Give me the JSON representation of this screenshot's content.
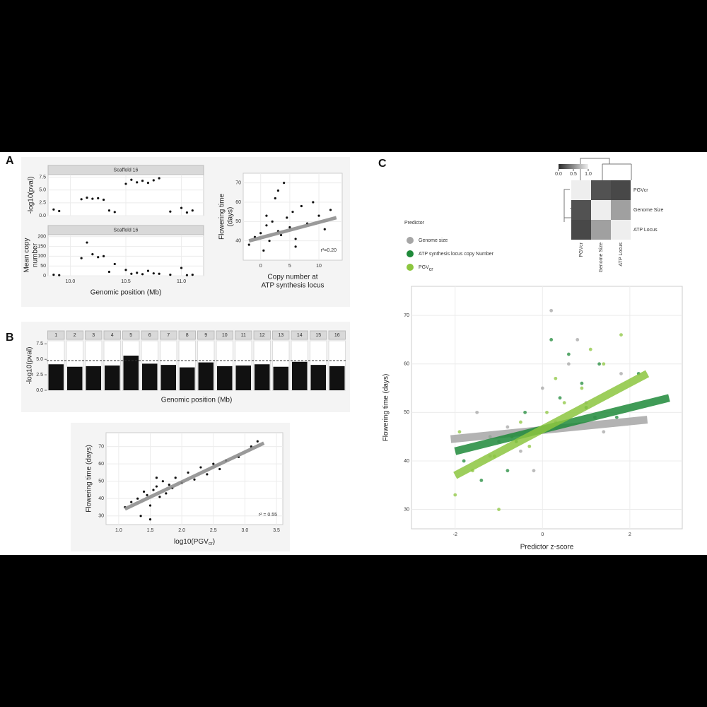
{
  "panel_labels": [
    "A",
    "B",
    "C"
  ],
  "chart_data": [
    {
      "type": "scatter",
      "strip": "Scaffold 16",
      "ylabel": "-log10(pval)",
      "xlim": [
        9.8,
        11.2
      ],
      "xticks": [
        10,
        10.5,
        11
      ],
      "ylim": [
        0,
        8
      ],
      "yticks": [
        {
          "value": 0,
          "label": "0.0"
        },
        2.5,
        {
          "value": 5,
          "label": "5.0"
        },
        7.5
      ],
      "series": [
        {
          "color": "#111111",
          "x": [
            9.85,
            9.9,
            10.1,
            10.15,
            10.2,
            10.25,
            10.3,
            10.35,
            10.5,
            10.55,
            10.6,
            10.65,
            10.7,
            10.75,
            10.8,
            10.9,
            11.0,
            11.05,
            11.1,
            10.4
          ],
          "values": [
            1.2,
            0.9,
            3.2,
            3.5,
            3.3,
            3.4,
            3.1,
            1.0,
            6.2,
            7.0,
            6.5,
            6.8,
            6.4,
            6.9,
            7.3,
            0.8,
            1.5,
            0.6,
            1.0,
            0.7
          ]
        }
      ]
    },
    {
      "type": "scatter",
      "strip": "Scaffold 16",
      "ylabel": [
        "Mean copy",
        "number"
      ],
      "xlabel": "Genomic position (Mb)",
      "xlim": [
        9.8,
        11.2
      ],
      "xticks": [
        {
          "value": 10,
          "label": "10.0"
        },
        10.5,
        {
          "value": 11,
          "label": "11.0"
        }
      ],
      "ylim": [
        0,
        210
      ],
      "yticks": [
        0,
        50,
        100,
        150,
        200
      ],
      "series": [
        {
          "color": "#111111",
          "x": [
            9.85,
            9.9,
            10.1,
            10.15,
            10.2,
            10.25,
            10.3,
            10.35,
            10.5,
            10.55,
            10.6,
            10.65,
            10.7,
            10.75,
            10.8,
            10.9,
            11.0,
            11.05,
            11.1,
            10.4
          ],
          "values": [
            5,
            3,
            90,
            170,
            110,
            95,
            100,
            20,
            30,
            10,
            15,
            8,
            25,
            12,
            10,
            5,
            40,
            3,
            5,
            60
          ]
        }
      ]
    },
    {
      "type": "scatter",
      "ylabel": [
        "Flowering time",
        "(days)"
      ],
      "xlabel": [
        "Copy number at",
        "ATP synthesis locus"
      ],
      "annotation": "r²=0.20",
      "xlim": [
        -3,
        14
      ],
      "xticks": [
        0,
        5,
        10
      ],
      "ylim": [
        30,
        75
      ],
      "yticks": [
        40,
        50,
        60,
        70
      ],
      "fit": {
        "x": [
          -2,
          13
        ],
        "y": [
          40,
          52
        ],
        "color": "#888888"
      },
      "series": [
        {
          "color": "#111111",
          "x": [
            -2,
            -1,
            0,
            0.5,
            1,
            1.5,
            2,
            2.5,
            3,
            3.5,
            4,
            4.5,
            5,
            5.5,
            6,
            7,
            8,
            9,
            10,
            11,
            12,
            3,
            6,
            1
          ],
          "values": [
            38,
            42,
            44,
            35,
            48,
            40,
            50,
            62,
            45,
            43,
            70,
            52,
            47,
            55,
            41,
            58,
            49,
            60,
            53,
            46,
            56,
            66,
            37,
            53
          ]
        }
      ]
    },
    {
      "type": "bar",
      "ylabel": "-log10(pval)",
      "xlabel": "Genomic position (Mb)",
      "color": "#111111",
      "categories": [
        "1",
        "2",
        "3",
        "4",
        "5",
        "6",
        "7",
        "8",
        "9",
        "10",
        "11",
        "12",
        "13",
        "14",
        "15",
        "16"
      ],
      "values": [
        4.2,
        3.8,
        3.9,
        4.0,
        5.6,
        4.3,
        4.1,
        3.7,
        4.5,
        3.9,
        4.0,
        4.2,
        3.8,
        4.6,
        4.1,
        3.9
      ],
      "threshold": 4.8,
      "ylim": [
        0,
        8
      ],
      "yticks": [
        {
          "value": 0,
          "label": "0.0"
        },
        2.5,
        {
          "value": 5,
          "label": "5.0"
        },
        7.5
      ]
    },
    {
      "type": "scatter",
      "ylabel": "Flowering time (days)",
      "xlabel": "log10(PGV",
      "xlabel_sub": "cr",
      "xlabel_end": ")",
      "annotation": "r² = 0.55",
      "xlim": [
        0.8,
        3.6
      ],
      "xticks": [
        {
          "value": 1,
          "label": "1.0"
        },
        1.5,
        {
          "value": 2,
          "label": "2.0"
        },
        2.5,
        {
          "value": 3,
          "label": "3.0"
        },
        3.5
      ],
      "ylim": [
        25,
        78
      ],
      "yticks": [
        30,
        40,
        50,
        60,
        70
      ],
      "fit": {
        "x": [
          1.1,
          3.3
        ],
        "y": [
          34,
          72
        ],
        "color": "#888888"
      },
      "series": [
        {
          "color": "#111111",
          "x": [
            1.1,
            1.2,
            1.3,
            1.35,
            1.4,
            1.45,
            1.5,
            1.55,
            1.6,
            1.65,
            1.7,
            1.75,
            1.8,
            1.85,
            1.9,
            2.0,
            2.1,
            2.2,
            2.3,
            2.4,
            2.5,
            2.6,
            2.7,
            2.9,
            3.1,
            3.2,
            1.5,
            1.6
          ],
          "values": [
            35,
            38,
            40,
            30,
            44,
            42,
            36,
            45,
            47,
            41,
            50,
            43,
            48,
            46,
            52,
            49,
            55,
            51,
            58,
            54,
            60,
            57,
            62,
            64,
            70,
            73,
            28,
            52
          ]
        }
      ]
    },
    {
      "type": "scatter",
      "legend_title": "Predictor",
      "ylabel": "Flowering time (days)",
      "xlabel": "Predictor z-score",
      "xlim": [
        -3.0,
        3.2
      ],
      "xticks": [
        -2,
        0,
        2
      ],
      "ylim": [
        26,
        76
      ],
      "yticks": [
        30,
        40,
        50,
        60,
        70
      ],
      "series": [
        {
          "name": "Genome size",
          "color": "#a6a6a6",
          "x": [
            -1.5,
            -1.0,
            -0.5,
            0,
            0.3,
            0.6,
            1.0,
            1.4,
            -0.2,
            0.8,
            1.8,
            -0.8,
            0.2,
            1.2,
            -1.2
          ],
          "values": [
            50,
            44,
            42,
            55,
            48,
            60,
            52,
            46,
            38,
            65,
            58,
            47,
            71,
            49,
            41
          ],
          "fit": {
            "x": [
              -2.1,
              2.4
            ],
            "y": [
              44.5,
              48.5
            ]
          }
        },
        {
          "name": "ATP synthesis locus copy Number",
          "color": "#1f8a3a",
          "x": [
            -1.8,
            -1.2,
            -0.8,
            -0.4,
            0,
            0.4,
            0.9,
            1.3,
            1.7,
            2.2,
            -0.6,
            0.6,
            1.0,
            -1.4,
            0.2
          ],
          "values": [
            40,
            45,
            38,
            50,
            47,
            53,
            56,
            60,
            49,
            58,
            44,
            62,
            51,
            36,
            65
          ],
          "fit": {
            "x": [
              -2.0,
              2.9
            ],
            "y": [
              42,
              53
            ]
          }
        },
        {
          "name": "PGV",
          "name_sub": "cr",
          "color": "#8cc63f",
          "x": [
            -2.0,
            -1.6,
            -1.1,
            -0.7,
            -0.3,
            0.1,
            0.5,
            0.9,
            1.4,
            1.8,
            -1.0,
            -0.5,
            0.3,
            1.1,
            -1.9
          ],
          "values": [
            33,
            38,
            41,
            45,
            43,
            50,
            52,
            55,
            60,
            66,
            30,
            48,
            57,
            63,
            46
          ],
          "fit": {
            "x": [
              -2.0,
              2.4
            ],
            "y": [
              37,
              58
            ]
          }
        }
      ]
    },
    {
      "type": "heatmap",
      "labels": [
        "PGVcr",
        "Genome Size",
        "ATP Locus"
      ],
      "label_colors": [
        "#5aa832",
        "#999999",
        "#2e8b3a"
      ],
      "values": [
        [
          1,
          0.2,
          0.15
        ],
        [
          0.2,
          1,
          0.6
        ],
        [
          0.15,
          0.6,
          1
        ]
      ],
      "colors": [
        "#2b2b2b",
        "#eeeeee"
      ],
      "colorbar_ticks": [
        {
          "value": 0,
          "label": "0.0"
        },
        0.5,
        {
          "value": 1,
          "label": "1.0"
        }
      ]
    }
  ]
}
